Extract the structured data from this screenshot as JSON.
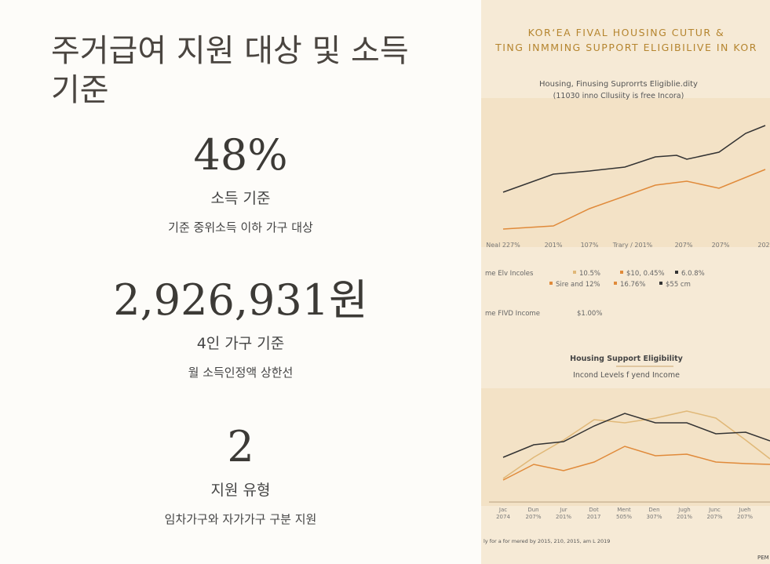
{
  "panel": {
    "title": "주거급여 지원 대상 및 소득 기준",
    "stats": [
      {
        "value": "48%",
        "label": "소득 기준",
        "desc": "기준 중위소득 이하 가구 대상"
      },
      {
        "value": "2,926,931원",
        "label": "4인 가구 기준",
        "desc": "월 소득인정액 상한선"
      },
      {
        "value": "2",
        "label": "지원 유형",
        "desc": "임차가구와 자가가구 구분 지원"
      }
    ]
  },
  "image": {
    "title_1": "KOR‘EA FIVAL HOUSING CUTUR &",
    "title_2": "TING INMMING SUPPORT ELIGIBILIVE IN KOR",
    "subtitle_1": "Housing, Finusing Suprorrts Eligiblie.dity",
    "subtitle_2": "(11030 inno Cllusiity is free Incora)",
    "top_axis": [
      "Neal 227%",
      "201%",
      "107%",
      "Trary / 201%",
      "207%",
      "207%",
      "202"
    ],
    "legend_1": "me Elv Incoles",
    "legend_2": "me FIVD Income",
    "legend_items": [
      "10.5%",
      "$10, 0.45%",
      "6.0.8%",
      "Sire and 12%",
      "16.76%",
      "$55 cm",
      "$1.00%"
    ],
    "chart2_title": "Housing Support Eligibility",
    "chart2_subtitle": "Incond Levels f yend Income",
    "bottom_axis": [
      [
        "Jac",
        "2074"
      ],
      [
        "Dun",
        "207%"
      ],
      [
        "Jur",
        "201%"
      ],
      [
        "Dot",
        "2017"
      ],
      [
        "Ment",
        "505%"
      ],
      [
        "Den",
        "307%"
      ],
      [
        "Jugh",
        "201%"
      ],
      [
        "Junc",
        "207%"
      ],
      [
        "Jueh",
        "207%"
      ]
    ],
    "footnote": "ly for a for mered by 2015, 210, 2015, am L 2019",
    "corner": "PEM"
  }
}
